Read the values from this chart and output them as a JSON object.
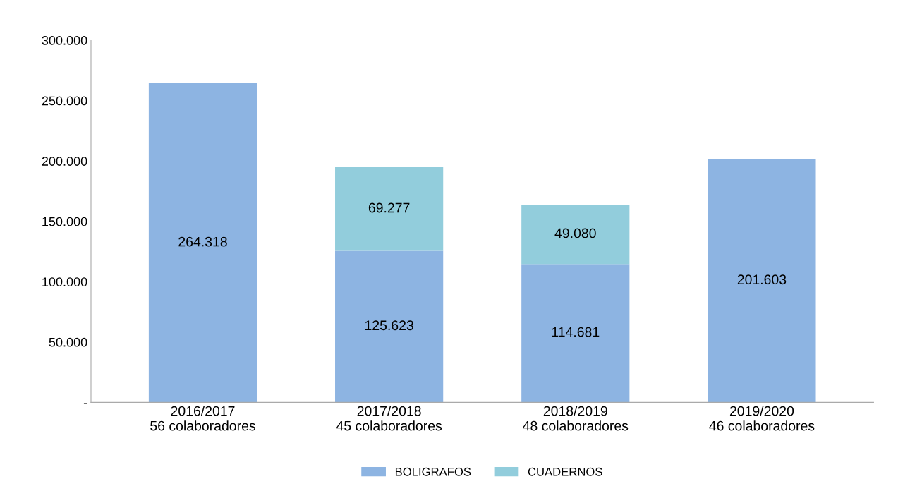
{
  "chart_data": {
    "type": "bar",
    "stacked": true,
    "categories": [
      "2016/2017\n56 colaboradores",
      "2017/2018\n45 colaboradores",
      "2018/2019\n48 colaboradores",
      "2019/2020\n46 colaboradores"
    ],
    "series": [
      {
        "name": "BOLIGRAFOS",
        "color": "#8db4e2",
        "values": [
          264318,
          125623,
          114681,
          201603
        ],
        "value_labels": [
          "264.318",
          "125.623",
          "114.681",
          "201.603"
        ]
      },
      {
        "name": "CUADERNOS",
        "color": "#92cddc",
        "values": [
          null,
          69277,
          49080,
          null
        ],
        "value_labels": [
          null,
          "69.277",
          "49.080",
          null
        ]
      }
    ],
    "ylim": [
      0,
      300000
    ],
    "yticks": [
      {
        "value": 0,
        "label": "-"
      },
      {
        "value": 50000,
        "label": "50.000"
      },
      {
        "value": 100000,
        "label": "100.000"
      },
      {
        "value": 150000,
        "label": "150.000"
      },
      {
        "value": 200000,
        "label": "200.000"
      },
      {
        "value": 250000,
        "label": "250.000"
      },
      {
        "value": 300000,
        "label": "300.000"
      }
    ],
    "grid": false,
    "legend": "bottom"
  }
}
